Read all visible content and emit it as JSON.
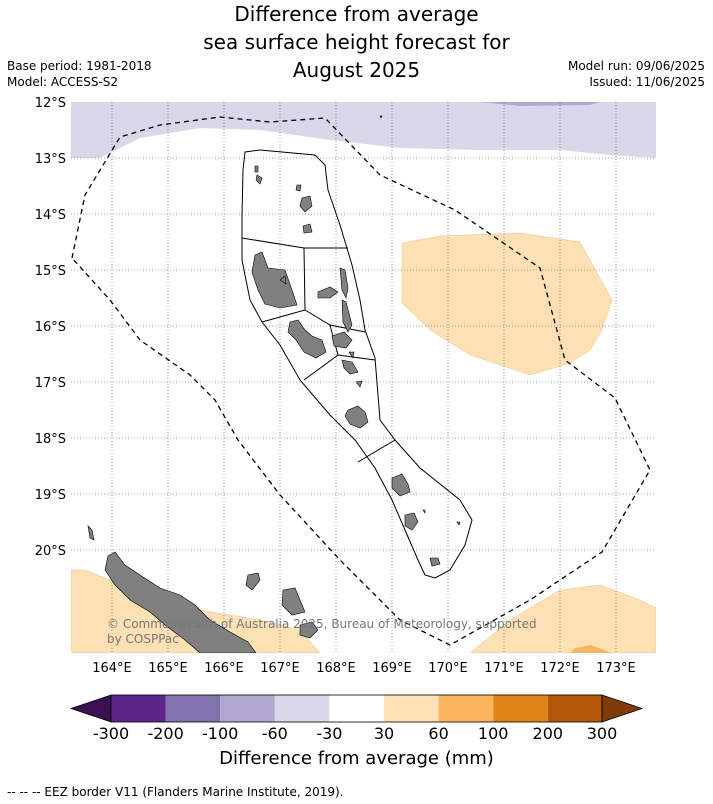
{
  "title": {
    "line1": "Difference from average",
    "line2": "sea surface height forecast for",
    "line3": "August 2025"
  },
  "meta": {
    "base_period": "Base period: 1981-2018",
    "model": "Model: ACCESS-S2",
    "model_run": "Model run: 09/06/2025",
    "issued": "Issued: 11/06/2025"
  },
  "map": {
    "lat_labels": [
      "12°S",
      "13°S",
      "14°S",
      "15°S",
      "16°S",
      "17°S",
      "18°S",
      "19°S",
      "20°S"
    ],
    "lon_labels": [
      "164°E",
      "165°E",
      "166°E",
      "167°E",
      "168°E",
      "169°E",
      "170°E",
      "171°E",
      "172°E",
      "173°E"
    ],
    "copyright_line1": "© Commonwealth of Australia 2025, Bureau of Meteorology, supported",
    "copyright_line2": "by COSPPac",
    "colors": {
      "land": "#808080",
      "neg_30_60": "#d8d8ea",
      "neg_60_100": "#b0a8d0",
      "pos_30_60": "#fde0b4",
      "pos_60_100": "#fbb55e",
      "grid": "#555555",
      "eez": "#000000"
    }
  },
  "colorbar": {
    "title": "Difference from average (mm)",
    "labels": [
      "-300",
      "-200",
      "-100",
      "-60",
      "-30",
      "30",
      "60",
      "100",
      "200",
      "300"
    ],
    "colors": [
      "#3b0f50",
      "#5c2587",
      "#8272ad",
      "#b0a8d0",
      "#d8d8ea",
      "#ffffff",
      "#fde0b4",
      "#fbb55e",
      "#e08416",
      "#b35806",
      "#7f3b08"
    ]
  },
  "footnote": "--  --  -- EEZ border V11 (Flanders Marine Institute, 2019)."
}
